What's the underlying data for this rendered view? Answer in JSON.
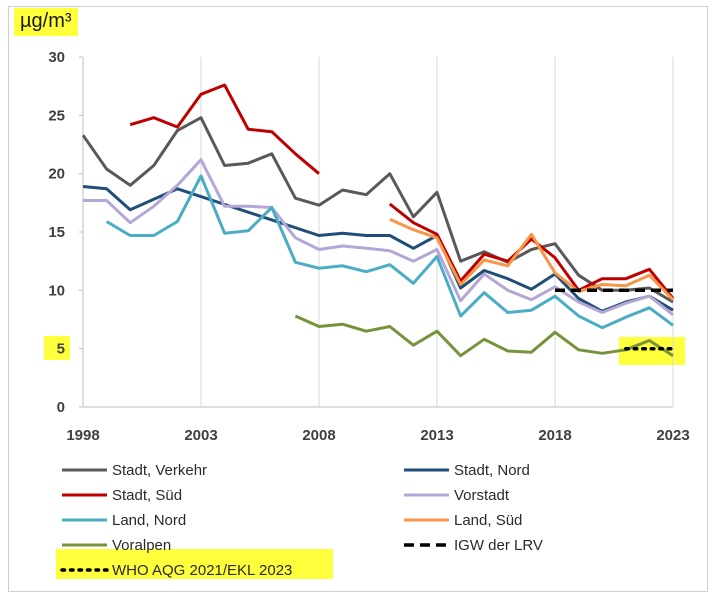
{
  "chart_data": {
    "type": "line",
    "unit": "µg/m³",
    "title": "",
    "xlabel": "",
    "ylabel": "",
    "xlim": [
      1998,
      2023
    ],
    "ylim": [
      0,
      30
    ],
    "x_ticks": [
      "1998",
      "2003",
      "2008",
      "2013",
      "2018",
      "2023"
    ],
    "y_ticks": [
      "0",
      "5",
      "10",
      "15",
      "20",
      "25",
      "30"
    ],
    "grid": "vertical",
    "legend_position": "bottom",
    "series": [
      {
        "name": "Stadt, Verkehr",
        "color": "#595959",
        "style": "solid",
        "points": [
          [
            1998,
            23.3
          ],
          [
            1999,
            20.4
          ],
          [
            2000,
            19.0
          ],
          [
            2001,
            20.7
          ],
          [
            2002,
            23.7
          ],
          [
            2003,
            24.8
          ],
          [
            2004,
            20.7
          ],
          [
            2005,
            20.9
          ],
          [
            2006,
            21.7
          ],
          [
            2007,
            17.9
          ],
          [
            2008,
            17.3
          ],
          [
            2009,
            18.6
          ],
          [
            2010,
            18.2
          ],
          [
            2011,
            20.0
          ],
          [
            2012,
            16.3
          ],
          [
            2013,
            18.4
          ],
          [
            2014,
            12.5
          ],
          [
            2015,
            13.3
          ],
          [
            2016,
            12.4
          ],
          [
            2017,
            13.5
          ],
          [
            2018,
            14.0
          ],
          [
            2019,
            11.3
          ],
          [
            2020,
            10.0
          ],
          [
            2021,
            10.0
          ],
          [
            2022,
            10.2
          ],
          [
            2023,
            9.0
          ]
        ]
      },
      {
        "name": "Stadt, Nord",
        "color": "#1f4e79",
        "style": "solid",
        "points": [
          [
            1998,
            18.9
          ],
          [
            1999,
            18.7
          ],
          [
            2000,
            16.9
          ],
          [
            2001,
            17.8
          ],
          [
            2002,
            18.7
          ],
          [
            2008,
            14.7
          ],
          [
            2009,
            14.9
          ],
          [
            2010,
            14.7
          ],
          [
            2011,
            14.7
          ],
          [
            2012,
            13.6
          ],
          [
            2013,
            14.7
          ],
          [
            2014,
            10.2
          ],
          [
            2015,
            11.7
          ],
          [
            2016,
            11.0
          ],
          [
            2017,
            10.1
          ],
          [
            2018,
            11.4
          ],
          [
            2019,
            9.3
          ],
          [
            2020,
            8.2
          ],
          [
            2021,
            9.0
          ],
          [
            2022,
            9.5
          ],
          [
            2023,
            8.3
          ]
        ]
      },
      {
        "name": "Stadt, Süd",
        "color": "#c00000",
        "style": "solid",
        "points": [
          [
            2000,
            24.2
          ],
          [
            2001,
            24.8
          ],
          [
            2002,
            24.0
          ],
          [
            2003,
            26.8
          ],
          [
            2004,
            27.6
          ],
          [
            2005,
            23.8
          ],
          [
            2006,
            23.6
          ],
          [
            2007,
            21.7
          ],
          [
            2008,
            20.0
          ],
          [
            null,
            null
          ],
          [
            2011,
            17.4
          ],
          [
            2012,
            15.8
          ],
          [
            2013,
            14.8
          ],
          [
            2014,
            10.8
          ],
          [
            2015,
            13.1
          ],
          [
            2016,
            12.5
          ],
          [
            2017,
            14.4
          ],
          [
            2018,
            12.8
          ],
          [
            2019,
            10.0
          ],
          [
            2020,
            11.0
          ],
          [
            2021,
            11.0
          ],
          [
            2022,
            11.8
          ],
          [
            2023,
            9.3
          ]
        ]
      },
      {
        "name": "Vorstadt",
        "color": "#b4a7d6",
        "style": "solid",
        "points": [
          [
            1998,
            17.7
          ],
          [
            1999,
            17.7
          ],
          [
            2000,
            15.8
          ],
          [
            2001,
            17.2
          ],
          [
            2002,
            19.0
          ],
          [
            2003,
            21.2
          ],
          [
            2004,
            17.2
          ],
          [
            2005,
            17.2
          ],
          [
            2006,
            17.1
          ],
          [
            2007,
            14.5
          ],
          [
            2008,
            13.5
          ],
          [
            2009,
            13.8
          ],
          [
            2010,
            13.6
          ],
          [
            2011,
            13.4
          ],
          [
            2012,
            12.5
          ],
          [
            2013,
            13.5
          ],
          [
            2014,
            9.1
          ],
          [
            2015,
            11.4
          ],
          [
            2016,
            10.0
          ],
          [
            2017,
            9.2
          ],
          [
            2018,
            10.3
          ],
          [
            2019,
            9.0
          ],
          [
            2020,
            8.1
          ],
          [
            2021,
            8.9
          ],
          [
            2022,
            9.5
          ],
          [
            2023,
            7.9
          ]
        ]
      },
      {
        "name": "Land, Nord",
        "color": "#4bacc6",
        "style": "solid",
        "points": [
          [
            1999,
            15.9
          ],
          [
            2000,
            14.7
          ],
          [
            2001,
            14.7
          ],
          [
            2002,
            15.9
          ],
          [
            2003,
            19.8
          ],
          [
            2004,
            14.9
          ],
          [
            2005,
            15.1
          ],
          [
            2006,
            17.1
          ],
          [
            2007,
            12.4
          ],
          [
            2008,
            11.9
          ],
          [
            2009,
            12.1
          ],
          [
            2010,
            11.6
          ],
          [
            2011,
            12.2
          ],
          [
            2012,
            10.6
          ],
          [
            2013,
            12.9
          ],
          [
            2014,
            7.8
          ],
          [
            2015,
            9.8
          ],
          [
            2016,
            8.1
          ],
          [
            2017,
            8.3
          ],
          [
            2018,
            9.5
          ],
          [
            2019,
            7.8
          ],
          [
            2020,
            6.8
          ],
          [
            2021,
            7.7
          ],
          [
            2022,
            8.5
          ],
          [
            2023,
            7.0
          ]
        ]
      },
      {
        "name": "Land, Süd",
        "color": "#f79646",
        "style": "solid",
        "points": [
          [
            2011,
            16.1
          ],
          [
            2012,
            15.2
          ],
          [
            2013,
            14.5
          ],
          [
            2014,
            10.5
          ],
          [
            2015,
            12.6
          ],
          [
            2016,
            12.1
          ],
          [
            2017,
            14.8
          ],
          [
            2018,
            11.5
          ],
          [
            2019,
            9.9
          ],
          [
            2020,
            10.5
          ],
          [
            2021,
            10.4
          ],
          [
            2022,
            11.3
          ],
          [
            2023,
            9.2
          ]
        ]
      },
      {
        "name": "Voralpen",
        "color": "#76933c",
        "style": "solid",
        "points": [
          [
            2007,
            7.8
          ],
          [
            2008,
            6.9
          ],
          [
            2009,
            7.1
          ],
          [
            2010,
            6.5
          ],
          [
            2011,
            6.9
          ],
          [
            2012,
            5.3
          ],
          [
            2013,
            6.5
          ],
          [
            2014,
            4.4
          ],
          [
            2015,
            5.8
          ],
          [
            2016,
            4.8
          ],
          [
            2017,
            4.7
          ],
          [
            2018,
            6.4
          ],
          [
            2019,
            4.9
          ],
          [
            2020,
            4.6
          ],
          [
            2021,
            4.9
          ],
          [
            2022,
            5.7
          ],
          [
            2023,
            4.4
          ]
        ]
      },
      {
        "name": "IGW der LRV",
        "color": "#000000",
        "style": "dashed",
        "points": [
          [
            2018,
            10
          ],
          [
            2023,
            10
          ]
        ]
      },
      {
        "name": "WHO AQG 2021/EKL 2023",
        "color": "#000000",
        "style": "dotted",
        "points": [
          [
            2021,
            5
          ],
          [
            2023,
            5
          ]
        ]
      }
    ]
  },
  "colors": {
    "highlight": "#ffff3b",
    "grid": "#d9d9d9",
    "axis": "#bfbfbf"
  }
}
